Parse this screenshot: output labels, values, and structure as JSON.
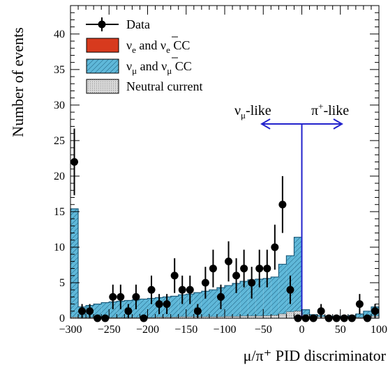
{
  "chart_data": {
    "type": "histogram",
    "xlabel": "μ/π⁺ PID discriminator",
    "ylabel": "Number of events",
    "xlim": [
      -300,
      100
    ],
    "ylim": [
      0,
      44
    ],
    "x_ticks": [
      -300,
      -250,
      -200,
      -150,
      -100,
      -50,
      0,
      50,
      100
    ],
    "x_tick_labels": [
      "−300",
      "−250",
      "−200",
      "−150",
      "−100",
      "−50",
      "0",
      "50",
      "100"
    ],
    "y_ticks": [
      0,
      5,
      10,
      15,
      20,
      25,
      30,
      35,
      40
    ],
    "y_tick_labels": [
      "0",
      "5",
      "10",
      "15",
      "20",
      "25",
      "30",
      "35",
      "40"
    ],
    "bin_width": 10,
    "bin_edges_start": -300,
    "legend": {
      "placement": "top-left",
      "entries": [
        {
          "key": "data",
          "label": "Data"
        },
        {
          "key": "nue",
          "label_parts": [
            "ν",
            "e",
            " and ",
            "ν",
            "e",
            " CC"
          ]
        },
        {
          "key": "numu",
          "label_parts": [
            "ν",
            "μ",
            " and ",
            "ν",
            "μ",
            " CC"
          ]
        },
        {
          "key": "nc",
          "label": "Neutral current"
        }
      ]
    },
    "series": [
      {
        "key": "nc",
        "type": "histogram-stack",
        "values": [
          0.15,
          0.1,
          0.1,
          0.1,
          0.1,
          0.1,
          0.1,
          0.1,
          0.1,
          0.1,
          0.1,
          0.15,
          0.15,
          0.15,
          0.2,
          0.2,
          0.2,
          0.2,
          0.2,
          0.2,
          0.25,
          0.25,
          0.3,
          0.3,
          0.3,
          0.35,
          0.4,
          0.6,
          0.9,
          1.0,
          0.5,
          0.3,
          0.2,
          0.15,
          0.15,
          0.1,
          0.1,
          0.1,
          0.2,
          0.3
        ]
      },
      {
        "key": "nue",
        "type": "histogram-stack",
        "values": [
          0,
          0,
          0,
          0,
          0,
          0,
          0,
          0,
          0,
          0,
          0,
          0,
          0,
          0,
          0,
          0,
          0,
          0,
          0,
          0,
          0,
          0,
          0,
          0,
          0,
          0,
          0,
          0,
          0,
          0,
          0,
          0,
          0,
          0,
          0,
          0,
          0,
          0,
          0,
          0
        ]
      },
      {
        "key": "numu",
        "type": "histogram-stack",
        "values_total": [
          15.4,
          1.6,
          1.8,
          2.0,
          2.2,
          2.3,
          2.4,
          2.5,
          2.6,
          2.7,
          2.8,
          2.9,
          3.0,
          3.1,
          3.3,
          3.4,
          3.6,
          3.8,
          4.0,
          4.3,
          4.6,
          4.9,
          5.2,
          5.4,
          5.5,
          5.6,
          5.8,
          7.6,
          8.8,
          11.4,
          1.2,
          0.5,
          0.4,
          0.3,
          0.3,
          0.3,
          0.4,
          0.6,
          1.0,
          1.6
        ]
      },
      {
        "key": "data",
        "type": "points",
        "x": [
          -295,
          -285,
          -275,
          -265,
          -255,
          -245,
          -235,
          -225,
          -215,
          -205,
          -195,
          -185,
          -175,
          -165,
          -155,
          -145,
          -135,
          -125,
          -115,
          -105,
          -95,
          -85,
          -75,
          -65,
          -55,
          -45,
          -35,
          -25,
          -15,
          -5,
          5,
          15,
          25,
          35,
          45,
          55,
          65,
          75,
          85,
          95
        ],
        "y": [
          22,
          1,
          1,
          0,
          0,
          3,
          3,
          1,
          3,
          0,
          4,
          2,
          2,
          6,
          4,
          4,
          1,
          5,
          7,
          3,
          8,
          6,
          7,
          5,
          7,
          7,
          10,
          16,
          4,
          0,
          0,
          0,
          1,
          0,
          0,
          0,
          0,
          2,
          0,
          1
        ]
      }
    ],
    "annotations": [
      {
        "key": "numu_like",
        "text_parts": [
          "ν",
          "μ",
          "-like"
        ]
      },
      {
        "key": "pi_like",
        "text_parts": [
          "π",
          "+",
          "-like"
        ]
      }
    ],
    "cut_value": 0,
    "colors": {
      "nue": "#d73a1e",
      "numu": "#5fb8d9",
      "nc": "#c8c8c8",
      "data": "#000000",
      "cut": "#2222cc"
    }
  }
}
